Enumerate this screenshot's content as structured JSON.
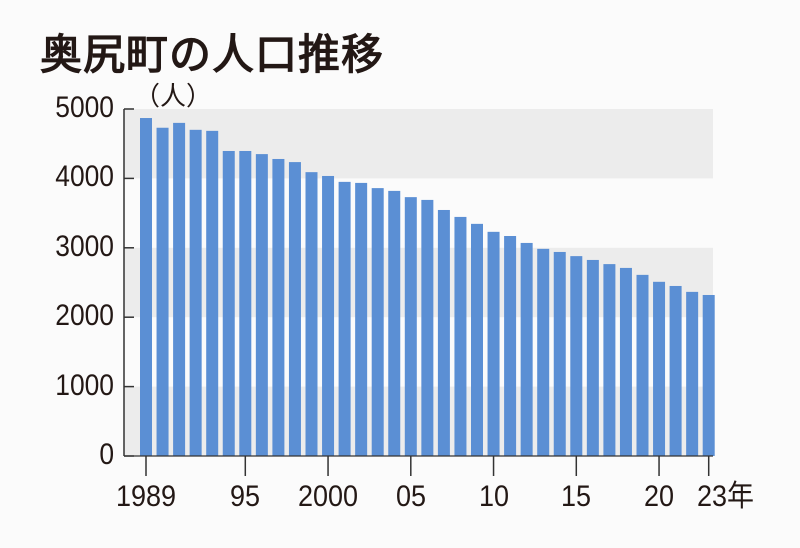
{
  "title": "奥尻町の人口推移",
  "unit_label": "（人）",
  "colors": {
    "bar": "#5b8fd4",
    "band": "#ececec",
    "axis": "#333333",
    "background": "#fbfbfb",
    "text": "#231815"
  },
  "y_ticks": [
    "5000",
    "4000",
    "3000",
    "2000",
    "1000",
    "0"
  ],
  "x_ticks": [
    {
      "year": 1989,
      "label": "1989"
    },
    {
      "year": 1995,
      "label": "95"
    },
    {
      "year": 2000,
      "label": "2000"
    },
    {
      "year": 2005,
      "label": "05"
    },
    {
      "year": 2010,
      "label": "10"
    },
    {
      "year": 2015,
      "label": "15"
    },
    {
      "year": 2020,
      "label": "20"
    },
    {
      "year": 2023,
      "label": "23年"
    }
  ],
  "chart_data": {
    "type": "bar",
    "title": "奥尻町の人口推移",
    "xlabel": "年",
    "ylabel": "（人）",
    "ylim": [
      0,
      5000
    ],
    "yticks": [
      0,
      1000,
      2000,
      3000,
      4000,
      5000
    ],
    "grid": "alternating horizontal bands (4000-5000, 2000-3000, 0-1000 shaded)",
    "legend": "none",
    "categories": [
      1989,
      1990,
      1991,
      1992,
      1993,
      1994,
      1995,
      1996,
      1997,
      1998,
      1999,
      2000,
      2001,
      2002,
      2003,
      2004,
      2005,
      2006,
      2007,
      2008,
      2009,
      2010,
      2011,
      2012,
      2013,
      2014,
      2015,
      2016,
      2017,
      2018,
      2019,
      2020,
      2021,
      2022,
      2023
    ],
    "values": [
      4870,
      4730,
      4800,
      4700,
      4685,
      4395,
      4395,
      4350,
      4280,
      4235,
      4090,
      4035,
      3950,
      3935,
      3860,
      3820,
      3730,
      3690,
      3545,
      3445,
      3345,
      3230,
      3170,
      3070,
      2985,
      2940,
      2880,
      2825,
      2765,
      2710,
      2610,
      2510,
      2450,
      2365,
      2320
    ]
  }
}
